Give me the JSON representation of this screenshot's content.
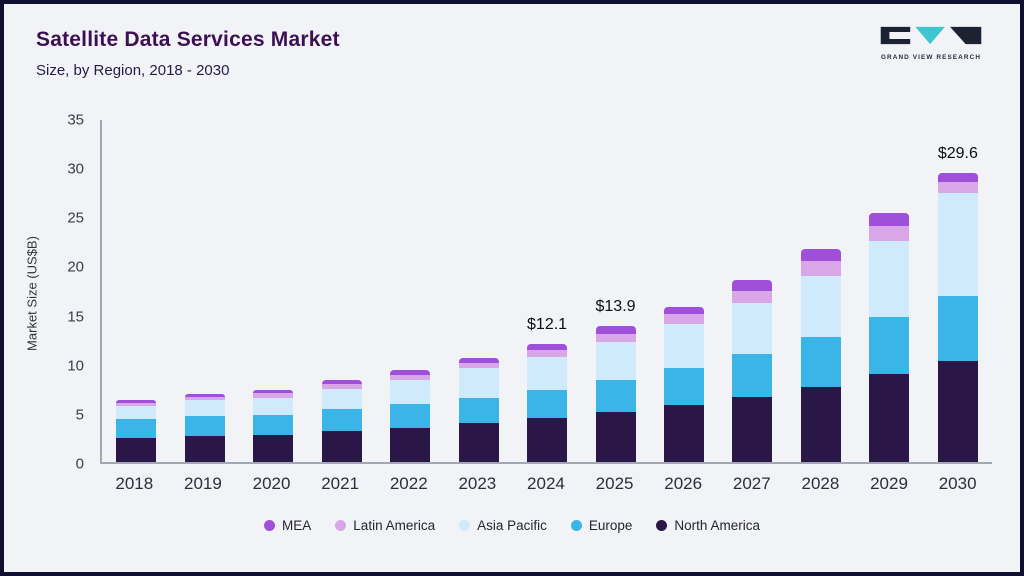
{
  "header": {
    "title": "Satellite Data Services Market",
    "subtitle": "Size, by Region, 2018 - 2030"
  },
  "logo": {
    "text": "GRAND VIEW RESEARCH"
  },
  "colors": {
    "frame_border": "#0f1030",
    "background": "#f2f3f7",
    "title": "#3c1053",
    "axis": "#a2a7b4"
  },
  "chart_data": {
    "type": "bar",
    "variant": "stacked",
    "title": "Satellite Data Services Market",
    "subtitle": "Size, by Region, 2018 - 2030",
    "xlabel": "",
    "ylabel": "Market Size (US$B)",
    "ylim": [
      0,
      35
    ],
    "yticks": [
      0,
      5,
      10,
      15,
      20,
      25,
      30,
      35
    ],
    "grid": false,
    "legend_position": "bottom",
    "categories": [
      "2018",
      "2019",
      "2020",
      "2021",
      "2022",
      "2023",
      "2024",
      "2025",
      "2026",
      "2027",
      "2028",
      "2029",
      "2030"
    ],
    "series": [
      {
        "name": "North America",
        "color": "#2b1747",
        "values": [
          2.5,
          2.7,
          2.8,
          3.2,
          3.5,
          4.0,
          4.5,
          5.1,
          5.8,
          6.7,
          7.7,
          9.0,
          10.3
        ]
      },
      {
        "name": "Europe",
        "color": "#3bb4e7",
        "values": [
          1.9,
          2.0,
          2.0,
          2.2,
          2.4,
          2.6,
          2.9,
          3.3,
          3.8,
          4.4,
          5.1,
          5.8,
          6.7
        ]
      },
      {
        "name": "Asia Pacific",
        "color": "#cfeafa",
        "values": [
          1.3,
          1.6,
          1.8,
          2.1,
          2.5,
          3.0,
          3.3,
          3.9,
          4.5,
          5.2,
          6.2,
          7.8,
          10.5
        ]
      },
      {
        "name": "Latin America",
        "color": "#d9a6e8",
        "values": [
          0.3,
          0.4,
          0.45,
          0.5,
          0.55,
          0.55,
          0.75,
          0.85,
          1.0,
          1.2,
          1.6,
          1.6,
          1.2
        ]
      },
      {
        "name": "MEA",
        "color": "#a050d8",
        "values": [
          0.3,
          0.3,
          0.35,
          0.4,
          0.45,
          0.45,
          0.65,
          0.75,
          0.8,
          1.1,
          1.2,
          1.3,
          0.9
        ]
      }
    ],
    "totals_labeled": {
      "2024": "$12.1",
      "2025": "$13.9",
      "2030": "$29.6"
    },
    "legend": [
      "MEA",
      "Latin America",
      "Asia Pacific",
      "Europe",
      "North America"
    ]
  }
}
